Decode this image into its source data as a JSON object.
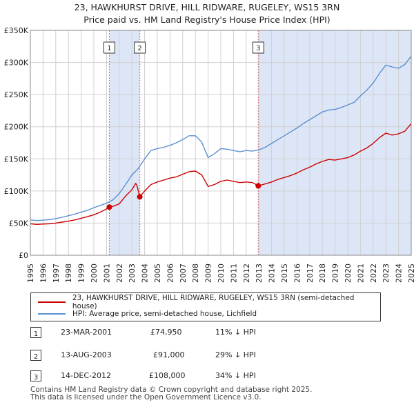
{
  "header": {
    "title_line1": "23, HAWKHURST DRIVE, HILL RIDWARE, RUGELEY, WS15 3RN",
    "title_line2": "Price paid vs. HM Land Registry's House Price Index (HPI)"
  },
  "chart_data": {
    "type": "line",
    "title": "23, HAWKHURST DRIVE, HILL RIDWARE, RUGELEY, WS15 3RN — Price paid vs. HM Land Registry's House Price Index (HPI)",
    "xlabel": "",
    "ylabel": "",
    "xlim": [
      1995,
      2025
    ],
    "ylim": [
      0,
      350000
    ],
    "x_ticks": [
      "1995",
      "1996",
      "1997",
      "1998",
      "1999",
      "2000",
      "2001",
      "2002",
      "2003",
      "2004",
      "2005",
      "2006",
      "2007",
      "2008",
      "2009",
      "2010",
      "2011",
      "2012",
      "2013",
      "2014",
      "2015",
      "2016",
      "2017",
      "2018",
      "2019",
      "2020",
      "2021",
      "2022",
      "2023",
      "2024",
      "2025"
    ],
    "y_ticks": [
      {
        "value": 0,
        "label": "£0"
      },
      {
        "value": 50000,
        "label": "£50K"
      },
      {
        "value": 100000,
        "label": "£100K"
      },
      {
        "value": 150000,
        "label": "£150K"
      },
      {
        "value": 200000,
        "label": "£200K"
      },
      {
        "value": 250000,
        "label": "£250K"
      },
      {
        "value": 300000,
        "label": "£300K"
      },
      {
        "value": 350000,
        "label": "£350K"
      }
    ],
    "grid": true,
    "colors": {
      "property": "#cc0000",
      "hpi": "#5b8fd0",
      "band": "#dde6f7",
      "vline": "#e06666"
    },
    "series": [
      {
        "name": "23, HAWKHURST DRIVE, HILL RIDWARE, RUGELEY, WS15 3RN (semi-detached house)",
        "color": "#cc0000",
        "points": [
          [
            1995.0,
            49000
          ],
          [
            1995.5,
            48000
          ],
          [
            1996.0,
            48500
          ],
          [
            1996.5,
            49000
          ],
          [
            1997.0,
            50000
          ],
          [
            1997.5,
            51500
          ],
          [
            1998.0,
            53000
          ],
          [
            1998.5,
            55000
          ],
          [
            1999.0,
            57500
          ],
          [
            1999.5,
            60000
          ],
          [
            2000.0,
            63000
          ],
          [
            2000.5,
            67000
          ],
          [
            2001.0,
            72000
          ],
          [
            2001.22,
            74950
          ],
          [
            2001.5,
            76000
          ],
          [
            2002.0,
            80000
          ],
          [
            2002.5,
            92000
          ],
          [
            2003.0,
            102000
          ],
          [
            2003.3,
            112000
          ],
          [
            2003.4,
            108000
          ],
          [
            2003.62,
            91000
          ],
          [
            2004.0,
            100000
          ],
          [
            2004.5,
            110000
          ],
          [
            2005.0,
            114000
          ],
          [
            2005.5,
            117000
          ],
          [
            2006.0,
            120000
          ],
          [
            2006.5,
            122000
          ],
          [
            2007.0,
            126000
          ],
          [
            2007.5,
            130000
          ],
          [
            2008.0,
            131000
          ],
          [
            2008.5,
            125000
          ],
          [
            2009.0,
            107000
          ],
          [
            2009.5,
            110000
          ],
          [
            2010.0,
            115000
          ],
          [
            2010.5,
            117000
          ],
          [
            2011.0,
            115000
          ],
          [
            2011.5,
            113000
          ],
          [
            2012.0,
            114000
          ],
          [
            2012.5,
            113000
          ],
          [
            2012.95,
            108000
          ],
          [
            2013.5,
            111000
          ],
          [
            2014.0,
            114000
          ],
          [
            2014.5,
            118000
          ],
          [
            2015.0,
            121000
          ],
          [
            2015.5,
            124000
          ],
          [
            2016.0,
            128000
          ],
          [
            2016.5,
            133000
          ],
          [
            2017.0,
            137000
          ],
          [
            2017.5,
            142000
          ],
          [
            2018.0,
            146000
          ],
          [
            2018.5,
            149000
          ],
          [
            2019.0,
            148000
          ],
          [
            2019.5,
            150000
          ],
          [
            2020.0,
            152000
          ],
          [
            2020.5,
            156000
          ],
          [
            2021.0,
            162000
          ],
          [
            2021.5,
            167000
          ],
          [
            2022.0,
            174000
          ],
          [
            2022.5,
            183000
          ],
          [
            2023.0,
            190000
          ],
          [
            2023.5,
            187000
          ],
          [
            2024.0,
            189000
          ],
          [
            2024.5,
            193000
          ],
          [
            2025.0,
            205000
          ]
        ]
      },
      {
        "name": "HPI: Average price, semi-detached house, Lichfield",
        "color": "#5b8fd0",
        "points": [
          [
            1995.0,
            55000
          ],
          [
            1995.5,
            54000
          ],
          [
            1996.0,
            54500
          ],
          [
            1996.5,
            55500
          ],
          [
            1997.0,
            57000
          ],
          [
            1997.5,
            59000
          ],
          [
            1998.0,
            61500
          ],
          [
            1998.5,
            64000
          ],
          [
            1999.0,
            67000
          ],
          [
            1999.5,
            70000
          ],
          [
            2000.0,
            74000
          ],
          [
            2000.5,
            77500
          ],
          [
            2001.0,
            81000
          ],
          [
            2001.5,
            86000
          ],
          [
            2002.0,
            96000
          ],
          [
            2002.5,
            110000
          ],
          [
            2003.0,
            125000
          ],
          [
            2003.5,
            135000
          ],
          [
            2004.0,
            150000
          ],
          [
            2004.5,
            163000
          ],
          [
            2005.0,
            166000
          ],
          [
            2005.5,
            168000
          ],
          [
            2006.0,
            171000
          ],
          [
            2006.5,
            175000
          ],
          [
            2007.0,
            180000
          ],
          [
            2007.5,
            186000
          ],
          [
            2008.0,
            186000
          ],
          [
            2008.5,
            176000
          ],
          [
            2009.0,
            152000
          ],
          [
            2009.5,
            158000
          ],
          [
            2010.0,
            166000
          ],
          [
            2010.5,
            165000
          ],
          [
            2011.0,
            163000
          ],
          [
            2011.5,
            161000
          ],
          [
            2012.0,
            163000
          ],
          [
            2012.5,
            162000
          ],
          [
            2013.0,
            164000
          ],
          [
            2013.5,
            168000
          ],
          [
            2014.0,
            174000
          ],
          [
            2014.5,
            180000
          ],
          [
            2015.0,
            186000
          ],
          [
            2015.5,
            192000
          ],
          [
            2016.0,
            198000
          ],
          [
            2016.5,
            205000
          ],
          [
            2017.0,
            211000
          ],
          [
            2017.5,
            217000
          ],
          [
            2018.0,
            223000
          ],
          [
            2018.5,
            226000
          ],
          [
            2019.0,
            227000
          ],
          [
            2019.5,
            230000
          ],
          [
            2020.0,
            234000
          ],
          [
            2020.5,
            238000
          ],
          [
            2021.0,
            248000
          ],
          [
            2021.5,
            257000
          ],
          [
            2022.0,
            268000
          ],
          [
            2022.5,
            283000
          ],
          [
            2023.0,
            296000
          ],
          [
            2023.5,
            293000
          ],
          [
            2024.0,
            291000
          ],
          [
            2024.5,
            297000
          ],
          [
            2025.0,
            310000
          ]
        ]
      }
    ],
    "sales": [
      {
        "id": "1",
        "year": 2001.22,
        "price": 74950
      },
      {
        "id": "2",
        "year": 2003.62,
        "price": 91000
      },
      {
        "id": "3",
        "year": 2012.95,
        "price": 108000
      }
    ],
    "bands": [
      [
        2001.22,
        2003.62
      ],
      [
        2012.95,
        2025.0
      ]
    ]
  },
  "legend": {
    "property_label": "23, HAWKHURST DRIVE, HILL RIDWARE, RUGELEY, WS15 3RN (semi-detached house)",
    "hpi_label": "HPI: Average price, semi-detached house, Lichfield"
  },
  "sales_table": [
    {
      "id": "1",
      "date": "23-MAR-2001",
      "price": "£74,950",
      "delta": "11% ↓ HPI"
    },
    {
      "id": "2",
      "date": "13-AUG-2003",
      "price": "£91,000",
      "delta": "29% ↓ HPI"
    },
    {
      "id": "3",
      "date": "14-DEC-2012",
      "price": "£108,000",
      "delta": "34% ↓ HPI"
    }
  ],
  "footer": {
    "line1": "Contains HM Land Registry data © Crown copyright and database right 2025.",
    "line2": "This data is licensed under the Open Government Licence v3.0."
  }
}
